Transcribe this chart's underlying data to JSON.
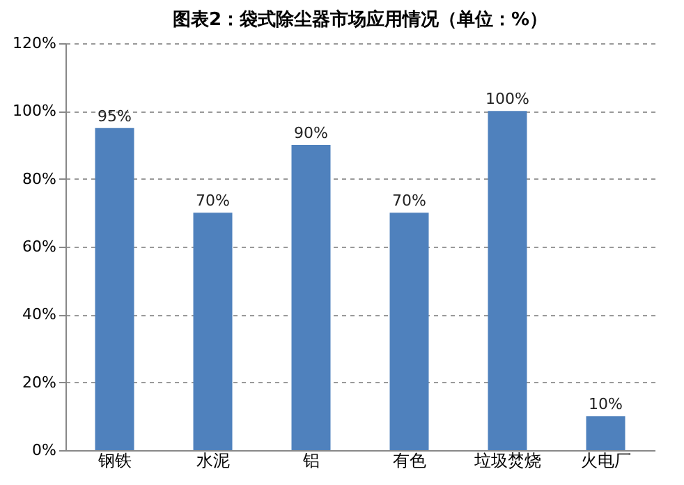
{
  "chart_data": {
    "type": "bar",
    "title": "图表2：袋式除尘器市场应用情况（单位：%）",
    "categories": [
      "钢铁",
      "水泥",
      "铝",
      "有色",
      "垃圾焚烧",
      "火电厂"
    ],
    "values": [
      95,
      70,
      90,
      70,
      100,
      10
    ],
    "value_labels": [
      "95%",
      "70%",
      "90%",
      "70%",
      "100%",
      "10%"
    ],
    "color": "#4f81bd",
    "ylim": [
      0,
      120
    ],
    "yticks": [
      {
        "value": 0,
        "label": "0%"
      },
      {
        "value": 20,
        "label": "20%"
      },
      {
        "value": 40,
        "label": "40%"
      },
      {
        "value": 60,
        "label": "60%"
      },
      {
        "value": 80,
        "label": "80%"
      },
      {
        "value": 100,
        "label": "100%"
      },
      {
        "value": 120,
        "label": "120%"
      }
    ],
    "grid": "y"
  }
}
